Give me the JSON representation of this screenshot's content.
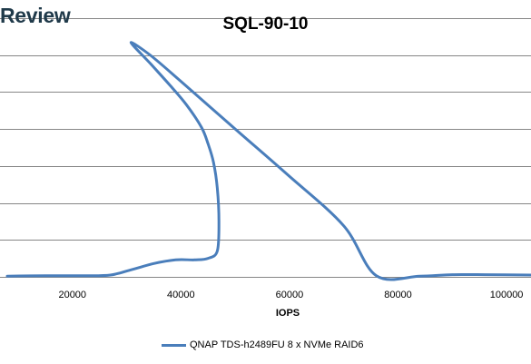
{
  "header": {
    "brand": "Review"
  },
  "colors": {
    "series": "#4a7ebb",
    "grid": "#868686",
    "brand": "#203a4a"
  },
  "chart_data": {
    "type": "line",
    "title": "SQL-90-10",
    "xlabel": "IOPS",
    "ylabel": "",
    "xlim": [
      8000,
      104500
    ],
    "ylim": [
      0,
      7
    ],
    "x_ticks": [
      20000,
      40000,
      60000,
      80000,
      100000
    ],
    "x_tick_labels": [
      "20000",
      "40000",
      "60000",
      "80000",
      "100000"
    ],
    "y_gridlines": [
      0,
      1,
      2,
      3,
      4,
      5,
      6,
      7
    ],
    "y_tick_labels_visible": false,
    "grid": true,
    "legend_position": "bottom",
    "series": [
      {
        "name": "QNAP TDS-h2489FU 8 x NVMe RAID6",
        "color": "#4a7ebb",
        "points": [
          [
            8000,
            0.02
          ],
          [
            15000,
            0.03
          ],
          [
            22000,
            0.03
          ],
          [
            27000,
            0.05
          ],
          [
            31000,
            0.2
          ],
          [
            35000,
            0.36
          ],
          [
            39000,
            0.46
          ],
          [
            42500,
            0.46
          ],
          [
            45000,
            0.5
          ],
          [
            46700,
            0.7
          ],
          [
            47000,
            1.5
          ],
          [
            46700,
            2.4
          ],
          [
            46000,
            3.1
          ],
          [
            45000,
            3.6
          ],
          [
            43800,
            4.04
          ],
          [
            41000,
            4.66
          ],
          [
            38000,
            5.18
          ],
          [
            34500,
            5.75
          ],
          [
            30800,
            6.34
          ],
          [
            34500,
            5.98
          ],
          [
            40000,
            5.29
          ],
          [
            50000,
            4.0
          ],
          [
            60000,
            2.72
          ],
          [
            70000,
            1.38
          ],
          [
            76000,
            0.03
          ],
          [
            84000,
            0.02
          ],
          [
            90000,
            0.06
          ],
          [
            96000,
            0.06
          ],
          [
            104500,
            0.05
          ]
        ]
      }
    ]
  }
}
